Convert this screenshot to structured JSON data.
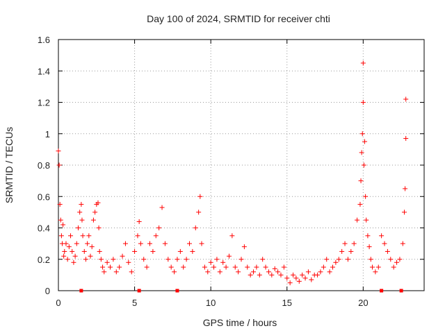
{
  "chart_data": {
    "type": "scatter",
    "title": "Day 100 of 2024, SRMTID for receiver chti",
    "xlabel": "GPS time / hours",
    "ylabel": "SRMTID / TECUs",
    "xlim": [
      0,
      24
    ],
    "ylim": [
      0,
      1.6
    ],
    "xticks": [
      0,
      5,
      10,
      15,
      20
    ],
    "xtick_labels": [
      "0",
      "5",
      "10",
      "15",
      "20"
    ],
    "yticks": [
      0,
      0.2,
      0.4,
      0.6,
      0.8,
      1.0,
      1.2,
      1.4,
      1.6
    ],
    "ytick_labels": [
      "0",
      "0.2",
      "0.4",
      "0.6",
      "0.8",
      "1",
      "1.2",
      "1.4",
      "1.6"
    ],
    "grid": true,
    "marker": "+",
    "series": [
      {
        "name": "SRMTID",
        "color": "#ff0000",
        "x": [
          0.0,
          0.05,
          0.1,
          0.15,
          0.2,
          0.25,
          0.3,
          0.35,
          0.4,
          0.5,
          0.6,
          0.7,
          0.8,
          0.9,
          1.0,
          1.1,
          1.2,
          1.3,
          1.4,
          1.5,
          1.55,
          1.6,
          1.7,
          1.8,
          1.9,
          2.0,
          2.1,
          2.2,
          2.3,
          2.4,
          2.5,
          2.6,
          2.65,
          2.7,
          2.8,
          2.9,
          3.0,
          3.2,
          3.4,
          3.6,
          3.8,
          4.0,
          4.2,
          4.4,
          4.6,
          4.8,
          5.0,
          5.2,
          5.3,
          5.4,
          5.6,
          5.8,
          6.0,
          6.2,
          6.4,
          6.6,
          6.8,
          7.0,
          7.2,
          7.4,
          7.6,
          7.8,
          8.0,
          8.2,
          8.4,
          8.6,
          8.8,
          9.0,
          9.2,
          9.3,
          9.4,
          9.6,
          9.8,
          10.0,
          10.2,
          10.4,
          10.6,
          10.8,
          11.0,
          11.2,
          11.4,
          11.6,
          11.8,
          12.0,
          12.2,
          12.4,
          12.6,
          12.8,
          13.0,
          13.2,
          13.4,
          13.6,
          13.8,
          14.0,
          14.2,
          14.4,
          14.6,
          14.8,
          15.0,
          15.2,
          15.4,
          15.6,
          15.8,
          16.0,
          16.2,
          16.4,
          16.6,
          16.8,
          17.0,
          17.2,
          17.4,
          17.6,
          17.8,
          18.0,
          18.2,
          18.4,
          18.6,
          18.8,
          19.0,
          19.2,
          19.4,
          19.6,
          19.8,
          19.85,
          19.9,
          19.95,
          20.0,
          20.0,
          20.05,
          20.1,
          20.15,
          20.2,
          20.3,
          20.4,
          20.5,
          20.6,
          20.8,
          21.0,
          21.2,
          21.4,
          21.6,
          21.8,
          22.0,
          22.2,
          22.4,
          22.6,
          22.7,
          22.75,
          22.8,
          22.8
        ],
        "y": [
          0.89,
          0.8,
          0.55,
          0.45,
          0.35,
          0.3,
          0.42,
          0.22,
          0.25,
          0.3,
          0.2,
          0.28,
          0.35,
          0.25,
          0.18,
          0.22,
          0.3,
          0.4,
          0.5,
          0.55,
          0.45,
          0.35,
          0.25,
          0.2,
          0.3,
          0.35,
          0.22,
          0.28,
          0.45,
          0.5,
          0.55,
          0.56,
          0.4,
          0.25,
          0.2,
          0.15,
          0.12,
          0.18,
          0.15,
          0.2,
          0.12,
          0.15,
          0.22,
          0.3,
          0.18,
          0.12,
          0.25,
          0.35,
          0.44,
          0.3,
          0.2,
          0.15,
          0.3,
          0.25,
          0.35,
          0.4,
          0.53,
          0.3,
          0.2,
          0.15,
          0.12,
          0.2,
          0.25,
          0.15,
          0.2,
          0.3,
          0.25,
          0.4,
          0.5,
          0.6,
          0.3,
          0.15,
          0.12,
          0.18,
          0.15,
          0.2,
          0.12,
          0.18,
          0.15,
          0.22,
          0.35,
          0.15,
          0.12,
          0.2,
          0.28,
          0.15,
          0.1,
          0.12,
          0.15,
          0.1,
          0.2,
          0.15,
          0.12,
          0.1,
          0.14,
          0.12,
          0.1,
          0.15,
          0.08,
          0.05,
          0.1,
          0.08,
          0.06,
          0.1,
          0.08,
          0.12,
          0.07,
          0.1,
          0.1,
          0.12,
          0.15,
          0.2,
          0.12,
          0.15,
          0.18,
          0.2,
          0.25,
          0.3,
          0.2,
          0.25,
          0.3,
          0.45,
          0.55,
          0.7,
          0.88,
          1.0,
          1.45,
          1.2,
          0.8,
          0.95,
          0.6,
          0.45,
          0.35,
          0.28,
          0.2,
          0.15,
          0.12,
          0.15,
          0.35,
          0.3,
          0.25,
          0.2,
          0.15,
          0.18,
          0.2,
          0.3,
          0.5,
          0.65,
          0.97,
          1.22
        ]
      }
    ],
    "zero_markers_x": [
      1.5,
      5.3,
      7.8,
      21.2,
      22.5
    ]
  }
}
